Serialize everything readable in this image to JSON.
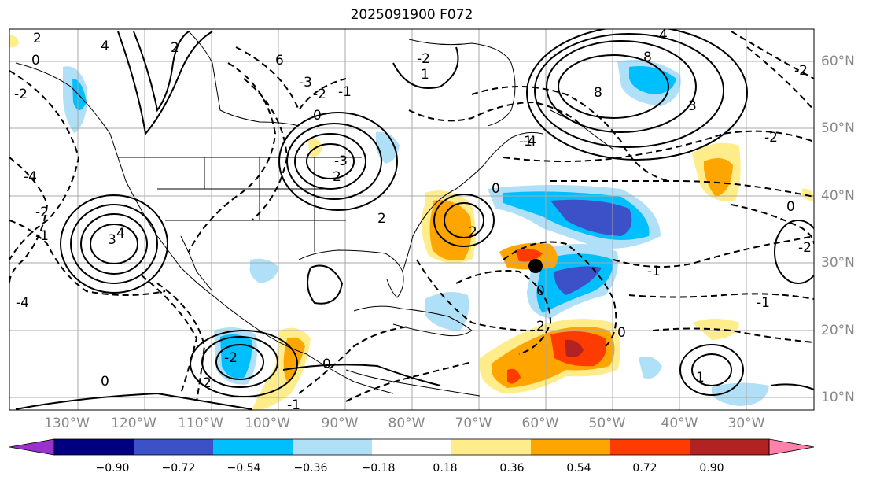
{
  "title": "2025091900 F072",
  "lon_labels": [
    "130°W",
    "120°W",
    "110°W",
    "100°W",
    "90°W",
    "80°W",
    "70°W",
    "60°W",
    "50°W",
    "40°W",
    "30°W"
  ],
  "lat_labels": [
    "60°N",
    "50°N",
    "40°N",
    "30°N",
    "20°N",
    "10°N"
  ],
  "colorbar": {
    "ticks": [
      "−0.90",
      "−0.72",
      "−0.54",
      "−0.36",
      "−0.18",
      "0.18",
      "0.36",
      "0.54",
      "0.72",
      "0.90"
    ],
    "colors": [
      "#9932cc",
      "#000080",
      "#3c50c8",
      "#00bfff",
      "#b0dff8",
      "#ffffff",
      "#ffec8b",
      "#ffa500",
      "#ff3c00",
      "#b22222",
      "#ff82ab"
    ]
  },
  "contour_labels": [
    "2",
    "0",
    "-2",
    "4",
    "2",
    "8",
    "6",
    "-3",
    "-4",
    "-2",
    "-1",
    "0",
    "-1",
    "-2",
    "0",
    "3",
    "2",
    "8",
    "4",
    "-4",
    "-3",
    "-2",
    "-1",
    "0",
    "2",
    "4",
    "3",
    "-4",
    "-2",
    "2",
    "0",
    "-2",
    "-1",
    "0",
    "2",
    "0",
    "-1",
    "-2",
    "1",
    "-2",
    "1",
    "2",
    "0",
    "-1"
  ],
  "marker": "storm-center"
}
